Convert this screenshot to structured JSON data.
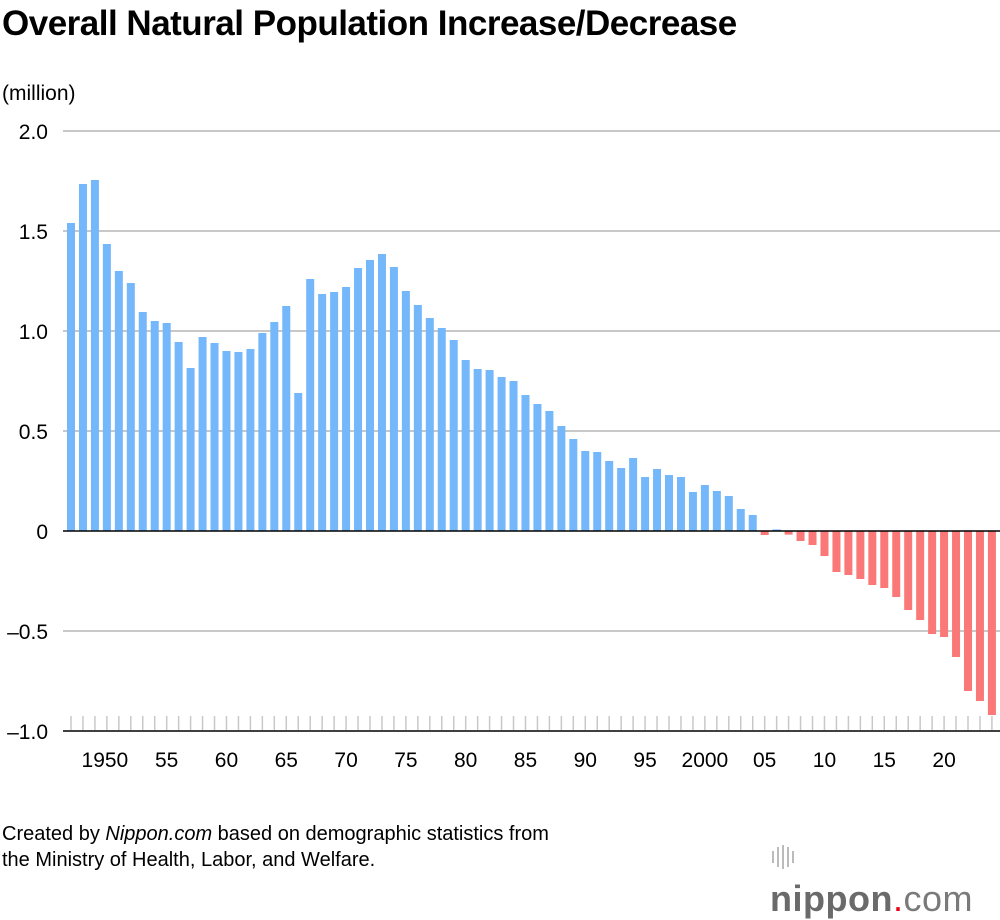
{
  "title": "Overall Natural Population Increase/Decrease",
  "unit_label": "(million)",
  "footer": {
    "part1": "Created by ",
    "part2": "Nippon.com",
    "part3": " based on demographic statistics from",
    "line2": "the Ministry of Health, Labor, and Welfare."
  },
  "logo": {
    "text": "nippon",
    "dot": ".",
    "suffix": "com"
  },
  "colors": {
    "positive": "#74b7fb",
    "negative": "#fb7878",
    "grid": "#c8c8c8",
    "axis": "#000000"
  },
  "chart_data": {
    "type": "bar",
    "title": "Overall Natural Population Increase/Decrease",
    "ylabel": "(million)",
    "ylim": [
      -1.0,
      2.0
    ],
    "yticks": [
      2.0,
      1.5,
      1.0,
      0.5,
      0,
      -0.5,
      -1.0
    ],
    "ytick_labels": [
      "2.0",
      "1.5",
      "1.0",
      "0.5",
      "0",
      "–0.5",
      "–1.0"
    ],
    "grid": true,
    "xtick_years": [
      1950,
      1955,
      1960,
      1965,
      1970,
      1975,
      1980,
      1985,
      1990,
      1995,
      2000,
      2005,
      2010,
      2015,
      2020
    ],
    "xtick_labels": [
      "1950",
      "55",
      "60",
      "65",
      "70",
      "75",
      "80",
      "85",
      "90",
      "95",
      "2000",
      "05",
      "10",
      "15",
      "20"
    ],
    "years": [
      1947,
      1948,
      1949,
      1950,
      1951,
      1952,
      1953,
      1954,
      1955,
      1956,
      1957,
      1958,
      1959,
      1960,
      1961,
      1962,
      1963,
      1964,
      1965,
      1966,
      1967,
      1968,
      1969,
      1970,
      1971,
      1972,
      1973,
      1974,
      1975,
      1976,
      1977,
      1978,
      1979,
      1980,
      1981,
      1982,
      1983,
      1984,
      1985,
      1986,
      1987,
      1988,
      1989,
      1990,
      1991,
      1992,
      1993,
      1994,
      1995,
      1996,
      1997,
      1998,
      1999,
      2000,
      2001,
      2002,
      2003,
      2004,
      2005,
      2006,
      2007,
      2008,
      2009,
      2010,
      2011,
      2012,
      2013,
      2014,
      2015,
      2016,
      2017,
      2018,
      2019,
      2020,
      2021,
      2022,
      2023,
      2024
    ],
    "values": [
      1.54,
      1.735,
      1.755,
      1.435,
      1.3,
      1.24,
      1.095,
      1.05,
      1.04,
      0.945,
      0.815,
      0.97,
      0.94,
      0.9,
      0.895,
      0.91,
      0.99,
      1.045,
      1.125,
      0.69,
      1.26,
      1.185,
      1.195,
      1.22,
      1.315,
      1.355,
      1.385,
      1.32,
      1.2,
      1.13,
      1.065,
      1.015,
      0.955,
      0.855,
      0.81,
      0.805,
      0.77,
      0.75,
      0.68,
      0.635,
      0.6,
      0.525,
      0.46,
      0.4,
      0.395,
      0.35,
      0.315,
      0.365,
      0.27,
      0.31,
      0.28,
      0.27,
      0.195,
      0.23,
      0.2,
      0.175,
      0.11,
      0.08,
      -0.02,
      0.008,
      -0.018,
      -0.05,
      -0.07,
      -0.125,
      -0.205,
      -0.22,
      -0.24,
      -0.27,
      -0.285,
      -0.33,
      -0.395,
      -0.445,
      -0.515,
      -0.53,
      -0.63,
      -0.8,
      -0.85,
      -0.92
    ]
  }
}
